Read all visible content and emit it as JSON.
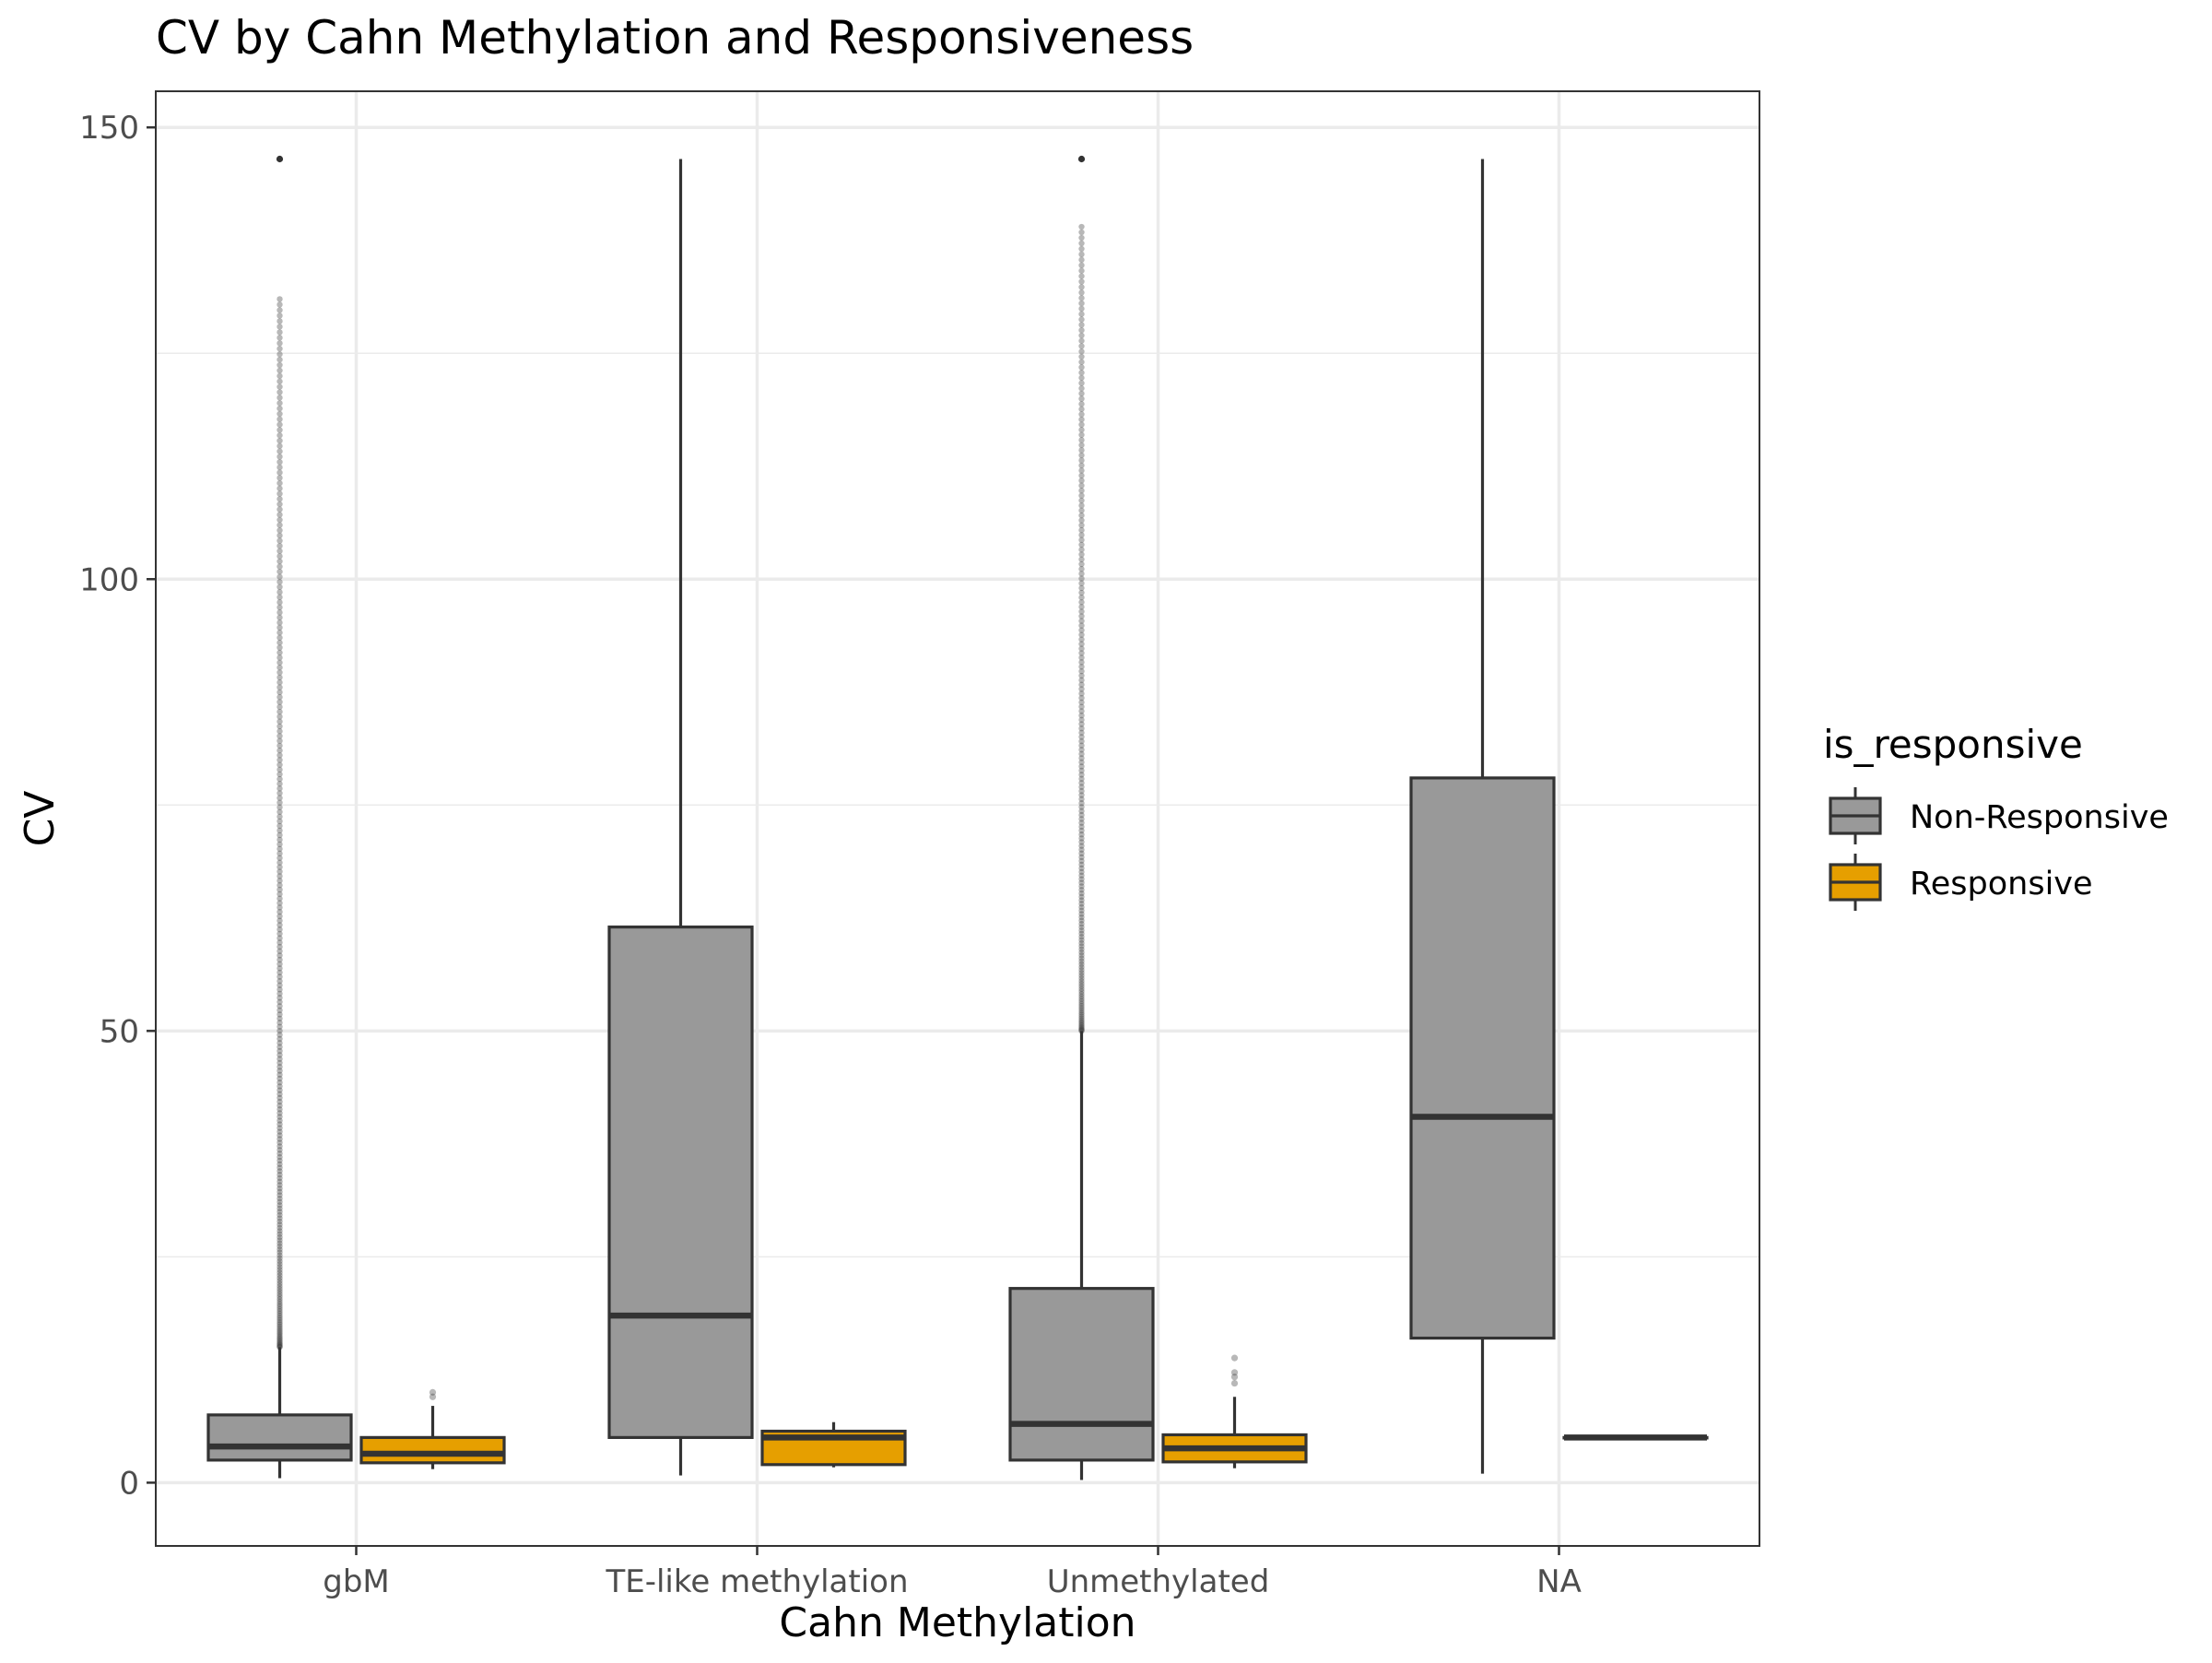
{
  "chart_data": {
    "type": "boxplot",
    "title": "CV by Cahn Methylation and Responsiveness",
    "xlabel": "Cahn Methylation",
    "ylabel": "CV",
    "categories": [
      "gbM",
      "TE-like methylation",
      "Unmethylated",
      "NA"
    ],
    "ylim": [
      -7,
      154
    ],
    "yticks": [
      0,
      50,
      100,
      150
    ],
    "y_minor_gridlines": [
      25,
      75,
      125
    ],
    "grid": true,
    "legend": {
      "title": "is_responsive",
      "placement": "right",
      "entries": [
        "Non-Responsive",
        "Responsive"
      ]
    },
    "colors": {
      "Non-Responsive": "#999999",
      "Responsive": "#E69F00",
      "outline": "#333333",
      "grid": "#EBEBEB",
      "panel_border": "#333333"
    },
    "series": [
      {
        "name": "Non-Responsive",
        "boxes": [
          {
            "category": "gbM",
            "min": 0.5,
            "q1": 2.5,
            "median": 4.0,
            "q3": 7.5,
            "max": 15.0,
            "outlier_range": [
              15,
              131
            ],
            "outliers": [
              146.5
            ]
          },
          {
            "category": "TE-like methylation",
            "min": 0.8,
            "q1": 5.0,
            "median": 18.5,
            "q3": 61.5,
            "max": 146.5,
            "outlier_range": null,
            "outliers": []
          },
          {
            "category": "Unmethylated",
            "min": 0.3,
            "q1": 2.5,
            "median": 6.5,
            "q3": 21.5,
            "max": 50.0,
            "outlier_range": [
              50,
              139
            ],
            "outliers": [
              146.5
            ]
          },
          {
            "category": "NA",
            "min": 1.0,
            "q1": 16.0,
            "median": 40.5,
            "q3": 78.0,
            "max": 146.5,
            "outlier_range": null,
            "outliers": []
          }
        ]
      },
      {
        "name": "Responsive",
        "boxes": [
          {
            "category": "gbM",
            "min": 1.5,
            "q1": 2.2,
            "median": 3.2,
            "q3": 5.0,
            "max": 8.5,
            "outlier_range": null,
            "outliers": [
              9.5,
              10.0
            ]
          },
          {
            "category": "TE-like methylation",
            "min": 1.7,
            "q1": 2.0,
            "median": 5.0,
            "q3": 5.7,
            "max": 6.7,
            "outlier_range": null,
            "outliers": []
          },
          {
            "category": "Unmethylated",
            "min": 1.6,
            "q1": 2.3,
            "median": 3.8,
            "q3": 5.3,
            "max": 9.5,
            "outlier_range": null,
            "outliers": [
              11.0,
              11.7,
              12.2,
              13.8
            ]
          },
          {
            "category": "NA",
            "min": 5.0,
            "q1": 5.0,
            "median": 5.0,
            "q3": 5.0,
            "max": 5.0,
            "outlier_range": null,
            "outliers": []
          }
        ]
      }
    ]
  }
}
